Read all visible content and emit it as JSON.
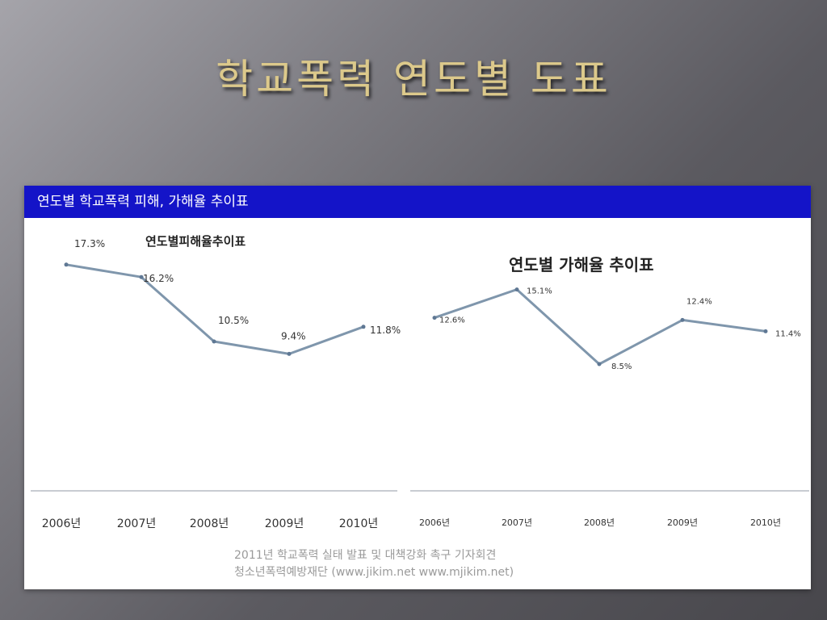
{
  "slide": {
    "title": "학교폭력 연도별 도표"
  },
  "panel": {
    "header": "연도별 학교폭력 피해, 가해율 추이표",
    "source_line1": "2011년 학교폭력 실태 발표 및 대책강화 촉구 기자회견",
    "source_line2": "청소년폭력예방재단 (www.jikim.net  www.mjikim.net)",
    "colors": {
      "header_bg": "#1414c8",
      "line": "#7f96ac",
      "title_text": "#dcc98b"
    }
  },
  "chart_data": [
    {
      "type": "line",
      "title": "연도별피해율추이표",
      "categories": [
        "2006년",
        "2007년",
        "2008년",
        "2009년",
        "2010년"
      ],
      "values": [
        17.3,
        16.2,
        10.5,
        9.4,
        11.8
      ],
      "labels": [
        "17.3%",
        "16.2%",
        "10.5%",
        "9.4%",
        "11.8%"
      ],
      "ylim": [
        0,
        20
      ],
      "grid": false
    },
    {
      "type": "line",
      "title": "연도별 가해율 추이표",
      "categories": [
        "2006년",
        "2007년",
        "2008년",
        "2009년",
        "2010년"
      ],
      "values": [
        12.6,
        15.1,
        8.5,
        12.4,
        11.4
      ],
      "labels": [
        "12.6%",
        "15.1%",
        "8.5%",
        "12.4%",
        "11.4%"
      ],
      "ylim": [
        0,
        20
      ],
      "grid": false
    }
  ]
}
